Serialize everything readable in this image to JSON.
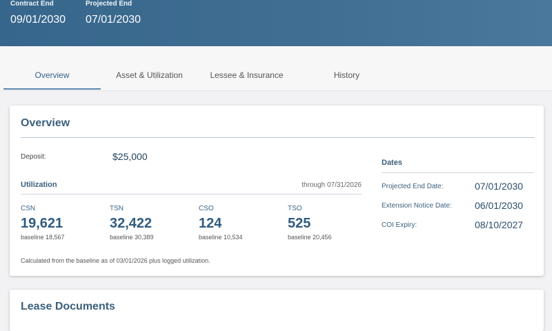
{
  "header": {
    "contract_end_label": "Contract End",
    "contract_end_value": "09/01/2030",
    "projected_end_label": "Projected End",
    "projected_end_value": "07/01/2030"
  },
  "tabs": [
    {
      "label": "Overview",
      "active": true
    },
    {
      "label": "Asset & Utilization",
      "active": false
    },
    {
      "label": "Lessee & Insurance",
      "active": false
    },
    {
      "label": "History",
      "active": false
    }
  ],
  "overview": {
    "title": "Overview",
    "deposit_label": "Deposit:",
    "deposit_value": "$25,000",
    "utilization": {
      "title": "Utilization",
      "through": "through 07/31/2026",
      "metrics": [
        {
          "name": "CSN",
          "value": "19,621",
          "baseline": "baseline 18,567"
        },
        {
          "name": "TSN",
          "value": "32,422",
          "baseline": "baseline 30,389"
        },
        {
          "name": "CSO",
          "value": "124",
          "baseline": "baseline 10,534"
        },
        {
          "name": "TSO",
          "value": "525",
          "baseline": "baseline 20,456"
        }
      ],
      "note": "Calculated from the baseline as of 03/01/2026 plus logged utilization."
    },
    "dates": {
      "title": "Dates",
      "rows": [
        {
          "label": "Projected End Date:",
          "value": "07/01/2030"
        },
        {
          "label": "Extension Notice Date:",
          "value": "06/01/2030"
        },
        {
          "label": "COI Expiry:",
          "value": "08/10/2027"
        }
      ]
    }
  },
  "next_section": {
    "title": "Lease Documents"
  }
}
